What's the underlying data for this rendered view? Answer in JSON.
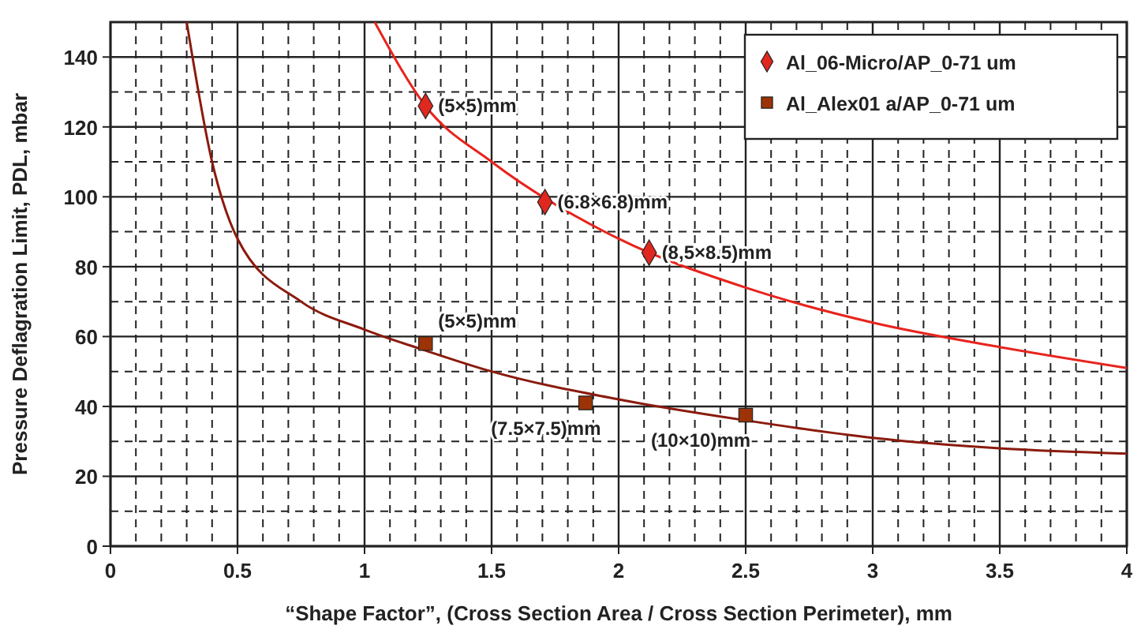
{
  "chart_data": {
    "type": "scatter",
    "xlabel": "“Shape Factor”, (Cross Section Area / Cross Section Perimeter), mm",
    "ylabel": "Pressure Deflagration Limit, PDL, mbar",
    "xlim": [
      0,
      4
    ],
    "xticks": [
      0,
      0.5,
      1,
      1.5,
      2,
      2.5,
      3,
      3.5,
      4
    ],
    "ylim": [
      0,
      150
    ],
    "yticks": [
      0,
      20,
      40,
      60,
      80,
      100,
      120,
      140
    ],
    "grid": true,
    "legend": "top right",
    "series": [
      {
        "type": "line",
        "color": "#e8231c",
        "marker": "none",
        "x": [
          1.04,
          1.24,
          1.5,
          2,
          2.5,
          3,
          3.5,
          4
        ],
        "values": [
          150,
          126,
          110,
          88,
          74,
          64,
          57,
          51
        ]
      },
      {
        "type": "line",
        "color": "#8b1a0e",
        "marker": "none",
        "x": [
          0.3,
          0.4,
          0.5,
          0.75,
          1,
          1.24,
          1.5,
          2,
          2.5,
          3,
          3.5,
          4
        ],
        "values": [
          150,
          110,
          88,
          70,
          62,
          56,
          50,
          42,
          36,
          31,
          28,
          26.5
        ]
      },
      {
        "name": "Al_06-Micro/AP_0-71 um",
        "color": "#e0281e",
        "marker": "diamond",
        "x": [
          1.24,
          1.71,
          2.12
        ],
        "values": [
          126,
          98.5,
          84
        ]
      },
      {
        "name": "Al_Alex01 a/AP_0-71 um",
        "color": "#9c3306",
        "marker": "square",
        "x": [
          1.24,
          1.87,
          2.5
        ],
        "values": [
          58,
          41,
          37.5
        ]
      }
    ],
    "annotations": [
      {
        "text": "(5×5)mm",
        "x": 1.24,
        "y": 126
      },
      {
        "text": "(6.8×6.8)mm",
        "x": 1.71,
        "y": 98.5
      },
      {
        "text": "(8,5×8.5)mm",
        "x": 2.12,
        "y": 84
      },
      {
        "text": "(5×5)mm",
        "x": 1.24,
        "y": 58
      },
      {
        "text": "(7.5×7.5)mm",
        "x": 1.87,
        "y": 41
      },
      {
        "text": "(10×10)mm",
        "x": 2.5,
        "y": 37.5
      }
    ]
  }
}
